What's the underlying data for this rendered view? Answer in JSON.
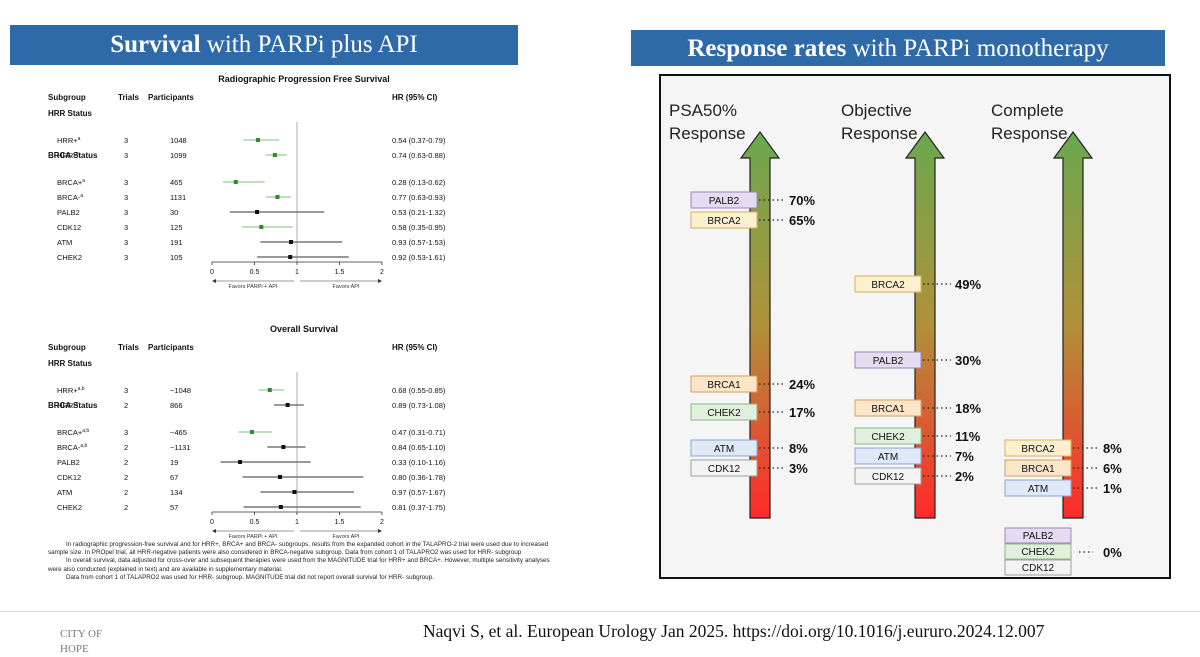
{
  "left_banner": {
    "bold": "Survival",
    "rest": " with PARPi plus API"
  },
  "right_banner": {
    "bold": "Response rates",
    "rest": " with PARPi monotherapy"
  },
  "footer": {
    "logo_line1": "CITY OF",
    "logo_line2": "HOPE",
    "citation": "Naqvi S, et al. European Urology Jan 2025. https://doi.org/10.1016/j.eururo.2024.12.007"
  },
  "footnotes": [
    "In radiographic progression-free survival and for HRR+, BRCA+ and BRCA- subgroups, results from the expanded cohort in the TALAPRO-2 trial were used due to increased sample size. In PROpel trial, all HRR-negative patients were also considered in BRCA-negative subgroup. Data from cohort 1 of TALAPRO2 was used for HRR- subgroup",
    "In overall survival, data adjusted for cross-over and subsequent therapies were used from the MAGNITUDE trial for HRR+ and BRCA+. However, multiple sensitivity analyses were also conducted (explained in text) and are available in supplementary material.",
    "Data from cohort 1 of TALAPRO2 was used for HRR- subgroup. MAGNITUDE trial did not report overall survival for HRR- subgroup."
  ],
  "chart_data": [
    {
      "type": "forest",
      "title": "Radiographic Progression Free Survival",
      "columns": [
        "Subgroup",
        "Trials",
        "Participants",
        "HR (95% CI)"
      ],
      "xlim": [
        0,
        2
      ],
      "xticks": [
        "0",
        "0.5",
        "1",
        "1.5",
        "2"
      ],
      "favors_left": "Favors PARPi + API",
      "favors_right": "Favors API",
      "rows": [
        {
          "kind": "header",
          "label": "HRR Status"
        },
        {
          "kind": "data",
          "label": "HRR+",
          "sup": "a",
          "trials": "3",
          "participants": "1048",
          "hr": 0.54,
          "lo": 0.37,
          "hi": 0.79,
          "ci_text": "0.54 (0.37-0.79)",
          "color": "#2e8b2e"
        },
        {
          "kind": "data",
          "label": "HRR-",
          "sup": "a",
          "trials": "3",
          "participants": "1099",
          "hr": 0.74,
          "lo": 0.63,
          "hi": 0.88,
          "ci_text": "0.74 (0.63-0.88)",
          "color": "#2e8b2e"
        },
        {
          "kind": "header",
          "label": "BRCA Status"
        },
        {
          "kind": "data",
          "label": "BRCA+",
          "sup": "a",
          "trials": "3",
          "participants": "465",
          "hr": 0.28,
          "lo": 0.13,
          "hi": 0.62,
          "ci_text": "0.28 (0.13-0.62)",
          "color": "#2e8b2e"
        },
        {
          "kind": "data",
          "label": "BRCA-",
          "sup": "a",
          "trials": "3",
          "participants": "1131",
          "hr": 0.77,
          "lo": 0.63,
          "hi": 0.93,
          "ci_text": "0.77 (0.63-0.93)",
          "color": "#2e8b2e"
        },
        {
          "kind": "data",
          "label": "PALB2",
          "sup": "",
          "trials": "3",
          "participants": "30",
          "hr": 0.53,
          "lo": 0.21,
          "hi": 1.32,
          "ci_text": "0.53 (0.21-1.32)",
          "color": "#111111"
        },
        {
          "kind": "data",
          "label": "CDK12",
          "sup": "",
          "trials": "3",
          "participants": "125",
          "hr": 0.58,
          "lo": 0.35,
          "hi": 0.95,
          "ci_text": "0.58 (0.35-0.95)",
          "color": "#2e8b2e"
        },
        {
          "kind": "data",
          "label": "ATM",
          "sup": "",
          "trials": "3",
          "participants": "191",
          "hr": 0.93,
          "lo": 0.57,
          "hi": 1.53,
          "ci_text": "0.93 (0.57-1.53)",
          "color": "#111111"
        },
        {
          "kind": "data",
          "label": "CHEK2",
          "sup": "",
          "trials": "3",
          "participants": "105",
          "hr": 0.92,
          "lo": 0.53,
          "hi": 1.61,
          "ci_text": "0.92 (0.53-1.61)",
          "color": "#111111"
        }
      ]
    },
    {
      "type": "forest",
      "title": "Overall Survival",
      "columns": [
        "Subgroup",
        "Trials",
        "Participants",
        "HR (95% CI)"
      ],
      "xlim": [
        0,
        2
      ],
      "xticks": [
        "0",
        "0.5",
        "1",
        "1.5",
        "2"
      ],
      "favors_left": "Favors PARPi + API",
      "favors_right": "Favors API",
      "rows": [
        {
          "kind": "header",
          "label": "HRR Status"
        },
        {
          "kind": "data",
          "label": "HRR+",
          "sup": "a,b",
          "trials": "3",
          "participants": "~1048",
          "hr": 0.68,
          "lo": 0.55,
          "hi": 0.85,
          "ci_text": "0.68 (0.55-0.85)",
          "color": "#2e8b2e"
        },
        {
          "kind": "data",
          "label": "HRR-",
          "sup": "c",
          "trials": "2",
          "participants": "866",
          "hr": 0.89,
          "lo": 0.73,
          "hi": 1.08,
          "ci_text": "0.89 (0.73-1.08)",
          "color": "#111111"
        },
        {
          "kind": "header",
          "label": "BRCA Status"
        },
        {
          "kind": "data",
          "label": "BRCA+",
          "sup": "a,b",
          "trials": "3",
          "participants": "~465",
          "hr": 0.47,
          "lo": 0.31,
          "hi": 0.71,
          "ci_text": "0.47 (0.31-0.71)",
          "color": "#2e8b2e"
        },
        {
          "kind": "data",
          "label": "BRCA-",
          "sup": "a,b",
          "trials": "2",
          "participants": "~1131",
          "hr": 0.84,
          "lo": 0.65,
          "hi": 1.1,
          "ci_text": "0.84 (0.65-1.10)",
          "color": "#111111"
        },
        {
          "kind": "data",
          "label": "PALB2",
          "sup": "",
          "trials": "2",
          "participants": "19",
          "hr": 0.33,
          "lo": 0.1,
          "hi": 1.16,
          "ci_text": "0.33 (0.10-1.16)",
          "color": "#111111"
        },
        {
          "kind": "data",
          "label": "CDK12",
          "sup": "",
          "trials": "2",
          "participants": "67",
          "hr": 0.8,
          "lo": 0.36,
          "hi": 1.78,
          "ci_text": "0.80 (0.36-1.78)",
          "color": "#111111"
        },
        {
          "kind": "data",
          "label": "ATM",
          "sup": "",
          "trials": "2",
          "participants": "134",
          "hr": 0.97,
          "lo": 0.57,
          "hi": 1.67,
          "ci_text": "0.97 (0.57-1.67)",
          "color": "#111111"
        },
        {
          "kind": "data",
          "label": "CHEK2",
          "sup": "",
          "trials": "2",
          "participants": "57",
          "hr": 0.81,
          "lo": 0.37,
          "hi": 1.75,
          "ci_text": "0.81 (0.37-1.75)",
          "color": "#111111"
        }
      ]
    },
    {
      "type": "response-arrows",
      "ylim": [
        0,
        70
      ],
      "columns": [
        {
          "title_line1": "PSA50%",
          "title_line2": "Response",
          "items": [
            {
              "gene": "PALB2",
              "value": 70,
              "label": "70%"
            },
            {
              "gene": "BRCA2",
              "value": 65,
              "label": "65%"
            },
            {
              "gene": "BRCA1",
              "value": 24,
              "label": "24%"
            },
            {
              "gene": "CHEK2",
              "value": 17,
              "label": "17%"
            },
            {
              "gene": "ATM",
              "value": 8,
              "label": "8%"
            },
            {
              "gene": "CDK12",
              "value": 3,
              "label": "3%"
            }
          ]
        },
        {
          "title_line1": "Objective",
          "title_line2": "Response",
          "items": [
            {
              "gene": "BRCA2",
              "value": 49,
              "label": "49%"
            },
            {
              "gene": "PALB2",
              "value": 30,
              "label": "30%"
            },
            {
              "gene": "BRCA1",
              "value": 18,
              "label": "18%"
            },
            {
              "gene": "CHEK2",
              "value": 11,
              "label": "11%"
            },
            {
              "gene": "ATM",
              "value": 7,
              "label": "7%"
            },
            {
              "gene": "CDK12",
              "value": 2,
              "label": "2%"
            }
          ]
        },
        {
          "title_line1": "Complete",
          "title_line2": "Response",
          "items": [
            {
              "gene": "BRCA2",
              "value": 8,
              "label": "8%"
            },
            {
              "gene": "BRCA1",
              "value": 6,
              "label": "6%"
            },
            {
              "gene": "ATM",
              "value": 1,
              "label": "1%"
            }
          ],
          "zero_group": {
            "genes": [
              "PALB2",
              "CHEK2",
              "CDK12"
            ],
            "value": 0,
            "label": "0%"
          }
        }
      ],
      "gene_colors": {
        "PALB2": {
          "fill": "#e4dcf0",
          "stroke": "#9a86bf"
        },
        "BRCA2": {
          "fill": "#fdf0cf",
          "stroke": "#d8b45c"
        },
        "BRCA1": {
          "fill": "#fde6c8",
          "stroke": "#d4a060"
        },
        "CHEK2": {
          "fill": "#e1f0dc",
          "stroke": "#8cb884"
        },
        "ATM": {
          "fill": "#dfe9f7",
          "stroke": "#8aa6d6"
        },
        "CDK12": {
          "fill": "#f3f3f3",
          "stroke": "#a0a0a0"
        }
      }
    }
  ]
}
